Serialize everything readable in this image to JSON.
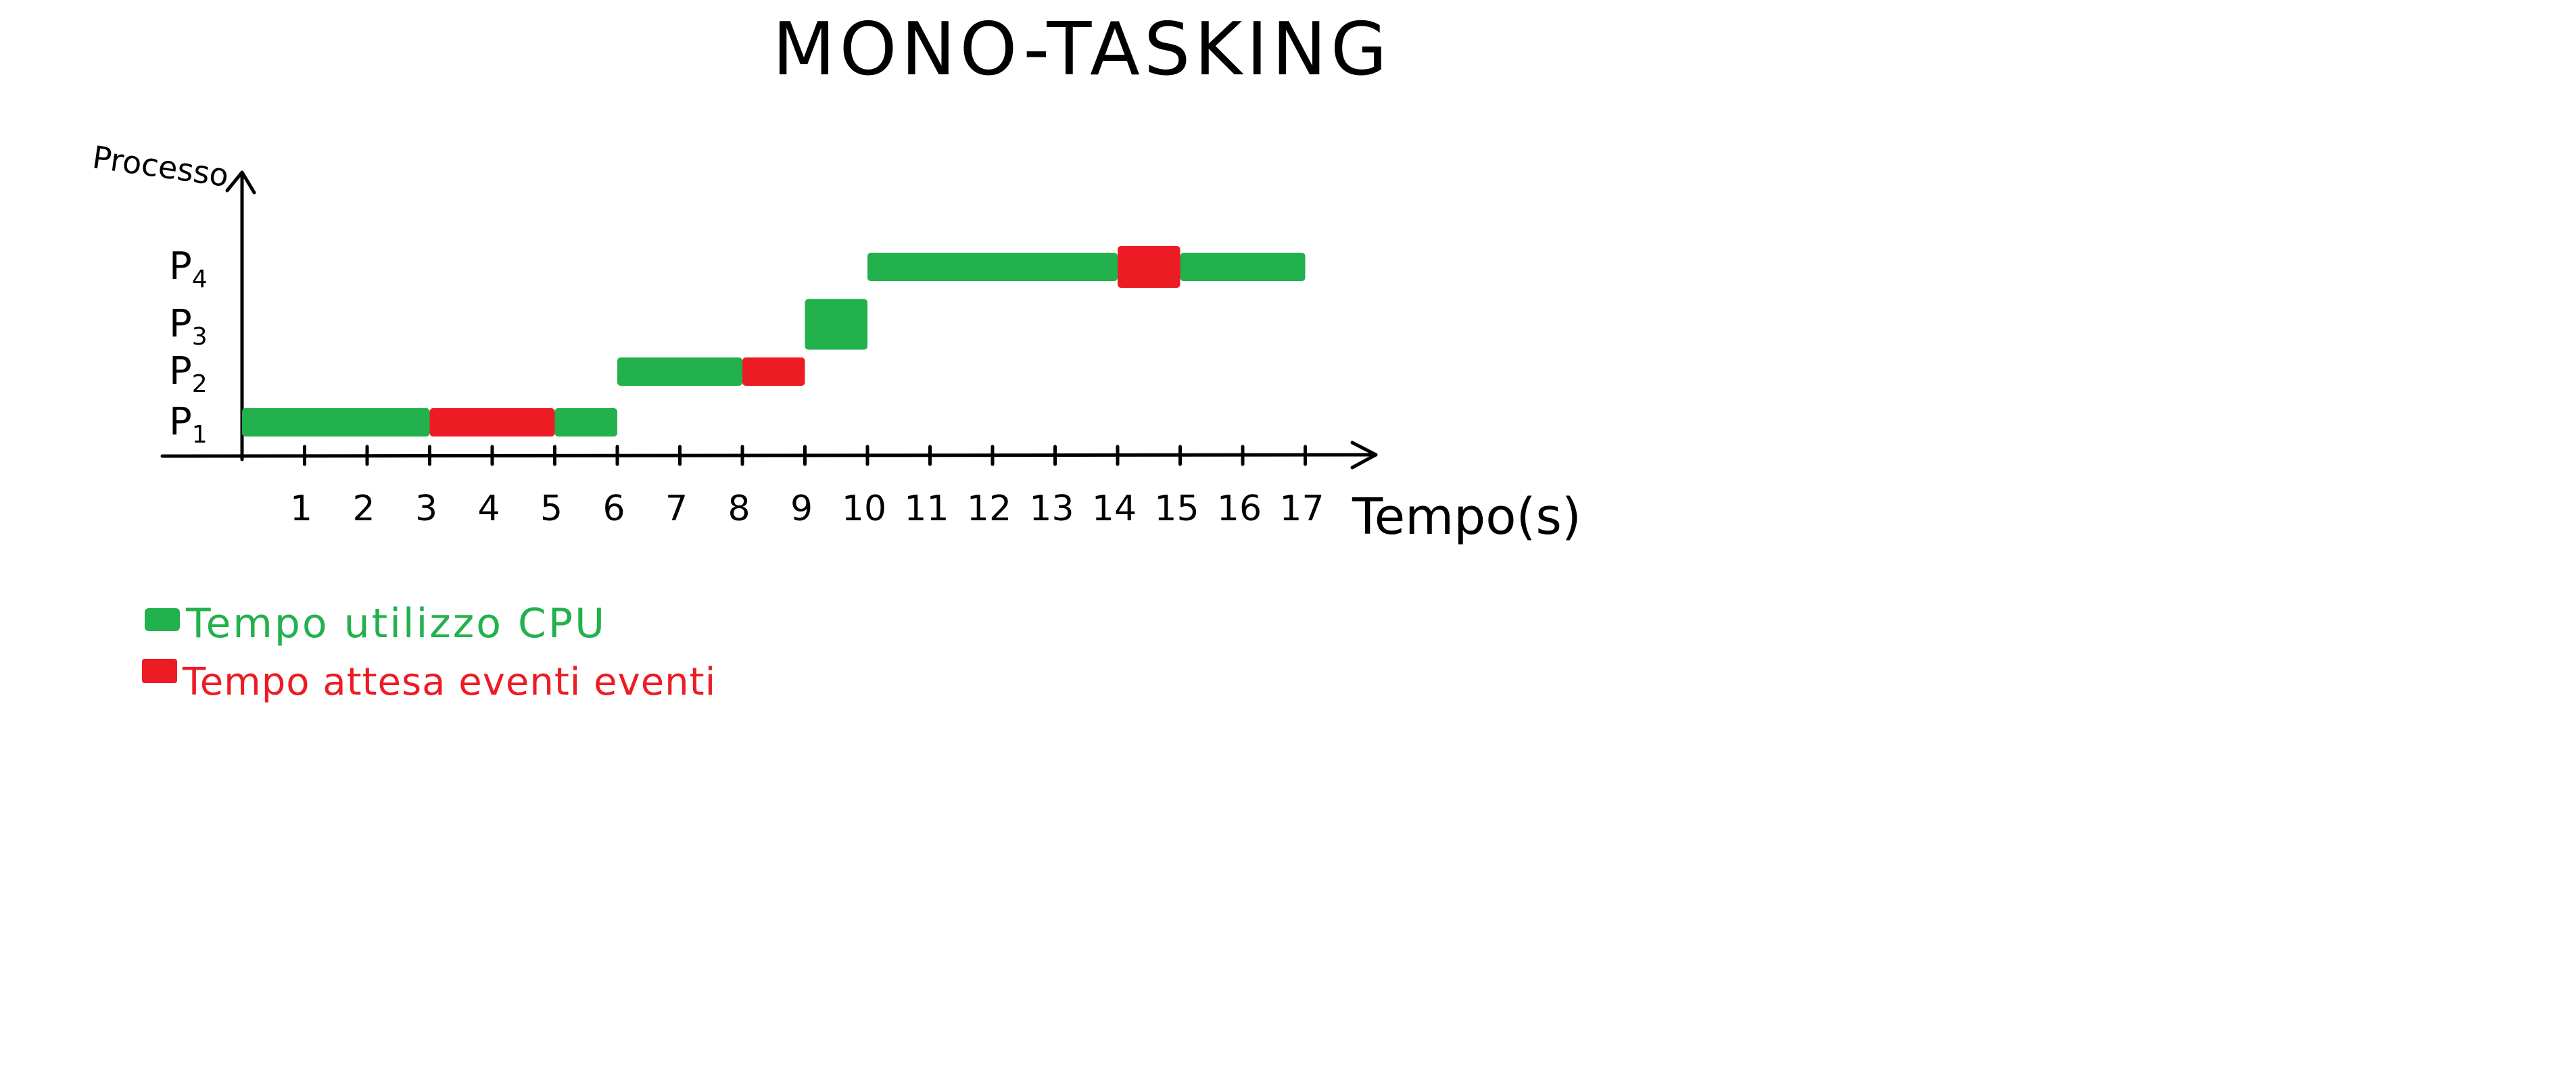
{
  "chart_data": {
    "type": "gantt",
    "title": "MONO-TASKING",
    "ylabel": "Processo",
    "xlabel": "Tempo(s)",
    "xlim": [
      0,
      17
    ],
    "x_ticks": [
      1,
      2,
      3,
      4,
      5,
      6,
      7,
      8,
      9,
      10,
      11,
      12,
      13,
      14,
      15,
      16,
      17
    ],
    "processes": [
      {
        "name": "P",
        "subscript": "1"
      },
      {
        "name": "P",
        "subscript": "2"
      },
      {
        "name": "P",
        "subscript": "3"
      },
      {
        "name": "P",
        "subscript": "4"
      }
    ],
    "segments": [
      {
        "process": 0,
        "start": 0,
        "end": 3,
        "kind": "cpu"
      },
      {
        "process": 0,
        "start": 3,
        "end": 5,
        "kind": "wait"
      },
      {
        "process": 0,
        "start": 5,
        "end": 6,
        "kind": "cpu"
      },
      {
        "process": 1,
        "start": 6,
        "end": 8,
        "kind": "cpu"
      },
      {
        "process": 1,
        "start": 8,
        "end": 9,
        "kind": "wait"
      },
      {
        "process": 2,
        "start": 9,
        "end": 10,
        "kind": "cpu"
      },
      {
        "process": 3,
        "start": 10,
        "end": 14,
        "kind": "cpu"
      },
      {
        "process": 3,
        "start": 14,
        "end": 15,
        "kind": "wait"
      },
      {
        "process": 3,
        "start": 15,
        "end": 17,
        "kind": "cpu"
      }
    ],
    "legend": [
      {
        "kind": "cpu",
        "label": "Tempo utilizzo CPU",
        "color": "#22b14c"
      },
      {
        "kind": "wait",
        "label": "Tempo attesa eventi eventi",
        "color": "#ed1c24"
      }
    ],
    "colors": {
      "axis": "#000000",
      "cpu": "#22b14c",
      "wait": "#ed1c24"
    }
  }
}
